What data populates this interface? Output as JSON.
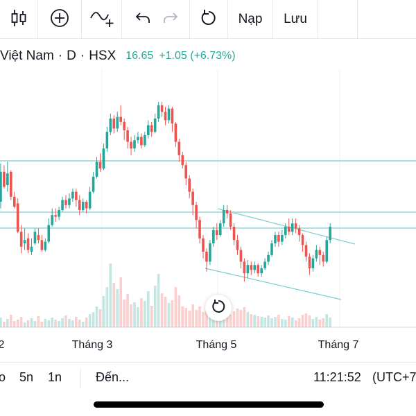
{
  "toolbar": {
    "candles_icon": "candlestick-icon",
    "add_icon": "plus-circle-icon",
    "indicator_icon": "indicator-add-icon",
    "undo_icon": "undo-icon",
    "redo_icon": "redo-icon",
    "reset_icon": "reload-icon",
    "load_label": "Nạp",
    "save_label": "Lưu"
  },
  "symbol": {
    "name": "Việt Nam",
    "interval": "D",
    "exchange": "HSX",
    "price": "16.65",
    "change": "+1.05 (+6.73%)"
  },
  "colors": {
    "up": "#26a69a",
    "down": "#ef5350",
    "line": "#7fcdcf",
    "text": "#131722",
    "grid": "#eef0f3"
  },
  "chart_data": {
    "type": "candlestick",
    "x_ticks": [
      "2",
      "Tháng 3",
      "Tháng 5",
      "Tháng 7"
    ],
    "horizontal_lines": [
      "resistance",
      "support-1",
      "support-2"
    ],
    "trend_channel": "descending",
    "candles": [
      [
        1.78,
        1.56,
        1.77,
        1.56
      ],
      [
        1.6,
        1.78,
        1.83,
        1.56
      ],
      [
        1.78,
        1.69,
        1.82,
        1.68
      ],
      [
        1.7,
        1.77,
        1.84,
        1.66
      ],
      [
        1.78,
        1.63,
        1.79,
        1.61
      ],
      [
        1.63,
        1.57,
        1.66,
        1.56
      ],
      [
        1.59,
        1.42,
        1.62,
        1.41
      ],
      [
        1.42,
        1.33,
        1.46,
        1.29
      ],
      [
        1.35,
        1.37,
        1.44,
        1.31
      ],
      [
        1.38,
        1.31,
        1.41,
        1.29
      ],
      [
        1.3,
        1.33,
        1.38,
        1.28
      ],
      [
        1.35,
        1.42,
        1.44,
        1.34
      ],
      [
        1.4,
        1.37,
        1.44,
        1.35
      ],
      [
        1.37,
        1.31,
        1.4,
        1.3
      ],
      [
        1.31,
        1.36,
        1.38,
        1.3
      ],
      [
        1.36,
        1.46,
        1.5,
        1.35
      ],
      [
        1.46,
        1.52,
        1.56,
        1.45
      ],
      [
        1.52,
        1.51,
        1.56,
        1.48
      ],
      [
        1.51,
        1.55,
        1.57,
        1.49
      ],
      [
        1.55,
        1.61,
        1.63,
        1.54
      ],
      [
        1.61,
        1.58,
        1.64,
        1.56
      ],
      [
        1.58,
        1.62,
        1.65,
        1.56
      ],
      [
        1.62,
        1.66,
        1.68,
        1.6
      ],
      [
        1.66,
        1.61,
        1.68,
        1.57
      ],
      [
        1.61,
        1.55,
        1.64,
        1.52
      ],
      [
        1.55,
        1.6,
        1.62,
        1.54
      ],
      [
        1.6,
        1.56,
        1.61,
        1.53
      ],
      [
        1.56,
        1.66,
        1.69,
        1.55
      ],
      [
        1.66,
        1.75,
        1.78,
        1.65
      ],
      [
        1.75,
        1.84,
        1.87,
        1.74
      ],
      [
        1.84,
        1.8,
        1.89,
        1.78
      ],
      [
        1.8,
        1.92,
        1.95,
        1.79
      ],
      [
        1.92,
        2.02,
        2.05,
        1.9
      ],
      [
        2.02,
        2.1,
        2.13,
        2.0
      ],
      [
        2.1,
        2.04,
        2.12,
        2.01
      ],
      [
        2.04,
        2.11,
        2.14,
        2.02
      ],
      [
        2.11,
        2.08,
        2.18,
        2.06
      ],
      [
        2.08,
        2.03,
        2.1,
        1.97
      ],
      [
        2.03,
        1.96,
        2.05,
        1.92
      ],
      [
        1.96,
        1.92,
        1.99,
        1.88
      ],
      [
        1.92,
        1.97,
        2.0,
        1.9
      ],
      [
        1.97,
        1.99,
        2.02,
        1.95
      ],
      [
        1.99,
        1.94,
        2.01,
        1.92
      ],
      [
        1.94,
        2.0,
        2.02,
        1.93
      ],
      [
        2.0,
        2.06,
        2.09,
        1.98
      ],
      [
        2.06,
        2.02,
        2.08,
        1.99
      ],
      [
        2.02,
        2.1,
        2.13,
        2.01
      ],
      [
        2.1,
        2.18,
        2.2,
        2.08
      ],
      [
        2.18,
        2.14,
        2.2,
        2.11
      ],
      [
        2.14,
        2.09,
        2.17,
        2.06
      ],
      [
        2.09,
        2.16,
        2.18,
        2.07
      ],
      [
        2.16,
        2.07,
        2.17,
        2.02
      ],
      [
        2.07,
        1.96,
        2.08,
        1.93
      ],
      [
        1.96,
        1.88,
        1.98,
        1.84
      ],
      [
        1.88,
        1.82,
        1.9,
        1.8
      ],
      [
        1.82,
        1.74,
        1.84,
        1.7
      ],
      [
        1.74,
        1.66,
        1.76,
        1.62
      ],
      [
        1.66,
        1.58,
        1.68,
        1.52
      ],
      [
        1.58,
        1.49,
        1.6,
        1.44
      ],
      [
        1.49,
        1.38,
        1.51,
        1.35
      ],
      [
        1.38,
        1.3,
        1.4,
        1.26
      ],
      [
        1.3,
        1.24,
        1.32,
        1.18
      ],
      [
        1.24,
        1.35,
        1.37,
        1.22
      ],
      [
        1.35,
        1.43,
        1.45,
        1.33
      ],
      [
        1.43,
        1.4,
        1.47,
        1.37
      ],
      [
        1.4,
        1.47,
        1.49,
        1.39
      ],
      [
        1.47,
        1.55,
        1.58,
        1.45
      ],
      [
        1.55,
        1.53,
        1.58,
        1.5
      ],
      [
        1.53,
        1.45,
        1.55,
        1.43
      ],
      [
        1.45,
        1.37,
        1.47,
        1.34
      ],
      [
        1.37,
        1.31,
        1.4,
        1.28
      ],
      [
        1.31,
        1.24,
        1.33,
        1.2
      ],
      [
        1.24,
        1.17,
        1.26,
        1.12
      ],
      [
        1.17,
        1.22,
        1.25,
        1.14
      ],
      [
        1.22,
        1.19,
        1.24,
        1.16
      ],
      [
        1.19,
        1.22,
        1.24,
        1.17
      ],
      [
        1.22,
        1.17,
        1.23,
        1.15
      ],
      [
        1.17,
        1.2,
        1.22,
        1.15
      ],
      [
        1.2,
        1.24,
        1.26,
        1.19
      ],
      [
        1.24,
        1.28,
        1.3,
        1.22
      ],
      [
        1.28,
        1.35,
        1.37,
        1.27
      ],
      [
        1.35,
        1.4,
        1.42,
        1.33
      ],
      [
        1.4,
        1.36,
        1.42,
        1.33
      ],
      [
        1.36,
        1.4,
        1.43,
        1.34
      ],
      [
        1.4,
        1.45,
        1.47,
        1.38
      ],
      [
        1.45,
        1.42,
        1.5,
        1.4
      ],
      [
        1.42,
        1.47,
        1.5,
        1.4
      ],
      [
        1.47,
        1.44,
        1.5,
        1.41
      ],
      [
        1.44,
        1.4,
        1.46,
        1.36
      ],
      [
        1.4,
        1.34,
        1.41,
        1.3
      ],
      [
        1.34,
        1.27,
        1.36,
        1.24
      ],
      [
        1.27,
        1.2,
        1.29,
        1.16
      ],
      [
        1.2,
        1.26,
        1.28,
        1.18
      ],
      [
        1.26,
        1.31,
        1.34,
        1.24
      ],
      [
        1.31,
        1.28,
        1.33,
        1.22
      ],
      [
        1.28,
        1.24,
        1.3,
        1.21
      ],
      [
        1.24,
        1.37,
        1.39,
        1.23
      ],
      [
        1.37,
        1.45,
        1.47,
        1.35
      ]
    ],
    "volumes": [
      0.1,
      0.14,
      0.08,
      0.12,
      0.18,
      0.09,
      0.11,
      0.15,
      0.07,
      0.1,
      0.13,
      0.09,
      0.16,
      0.08,
      0.12,
      0.1,
      0.14,
      0.11,
      0.09,
      0.13,
      0.17,
      0.12,
      0.1,
      0.15,
      0.11,
      0.08,
      0.14,
      0.19,
      0.22,
      0.3,
      0.26,
      0.45,
      0.58,
      0.92,
      0.64,
      0.55,
      0.72,
      0.4,
      0.48,
      0.33,
      0.36,
      0.29,
      0.42,
      0.38,
      0.52,
      0.31,
      0.6,
      0.77,
      0.49,
      0.44,
      0.35,
      0.39,
      0.58,
      0.46,
      0.3,
      0.28,
      0.24,
      0.33,
      0.25,
      0.3,
      0.22,
      0.28,
      0.35,
      0.26,
      0.21,
      0.24,
      0.31,
      0.2,
      0.18,
      0.23,
      0.27,
      0.25,
      0.29,
      0.22,
      0.19,
      0.18,
      0.16,
      0.15,
      0.14,
      0.17,
      0.13,
      0.15,
      0.18,
      0.12,
      0.11,
      0.16,
      0.14,
      0.1,
      0.13,
      0.18,
      0.2,
      0.17,
      0.12,
      0.15,
      0.11,
      0.13,
      0.19,
      0.14
    ]
  },
  "bottombar": {
    "range_prev": "o",
    "range_5y": "5n",
    "range_1y": "1n",
    "goto_label": "Đến...",
    "clock": "11:21:52",
    "timezone": "(UTC+7"
  }
}
